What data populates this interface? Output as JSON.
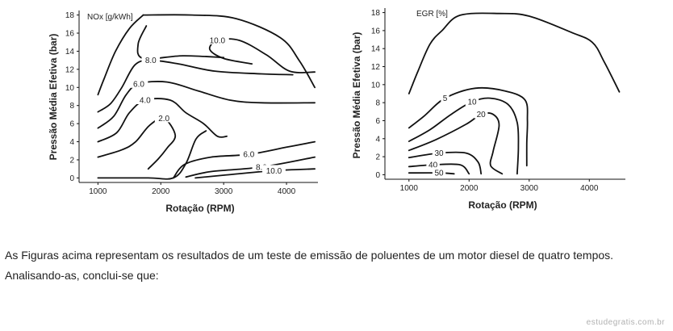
{
  "chart_data": [
    {
      "type": "contour",
      "title": "NOx [g/kWh]",
      "xlabel": "Rotação (RPM)",
      "ylabel": "Pressão Média Efetiva (bar)",
      "xlim": [
        700,
        4500
      ],
      "ylim": [
        -0.5,
        18.5
      ],
      "xticks": [
        1000,
        2000,
        3000,
        4000
      ],
      "yticks": [
        0,
        2,
        4,
        6,
        8,
        10,
        12,
        14,
        16,
        18
      ],
      "grid": false,
      "series": [
        {
          "label": "",
          "points": [
            [
              1000,
              9.2
            ],
            [
              1100,
              11
            ],
            [
              1280,
              14
            ],
            [
              1500,
              16.5
            ],
            [
              1720,
              18
            ]
          ]
        },
        {
          "label": "",
          "points": [
            [
              1720,
              18
            ],
            [
              2500,
              18
            ],
            [
              3200,
              17.6
            ],
            [
              3900,
              15.5
            ],
            [
              4200,
              13
            ],
            [
              4450,
              10
            ]
          ]
        },
        {
          "label": "10.0",
          "points": [
            [
              3450,
              12.6
            ],
            [
              3000,
              13.2
            ],
            [
              2780,
              14.2
            ],
            [
              2900,
              15.2
            ],
            [
              3250,
              15.2
            ],
            [
              3680,
              13.6
            ],
            [
              4050,
              11.8
            ],
            [
              4450,
              11.7
            ]
          ]
        },
        {
          "label": "8.0",
          "points": [
            [
              1000,
              7.3
            ],
            [
              1200,
              8.2
            ],
            [
              1380,
              10
            ],
            [
              1590,
              12.5
            ],
            [
              1840,
              13
            ],
            [
              2280,
              12.6
            ],
            [
              2860,
              11.8
            ],
            [
              3600,
              11.5
            ],
            [
              4100,
              11.4
            ]
          ]
        },
        {
          "label": "",
          "points": [
            [
              1770,
              16.8
            ],
            [
              1640,
              14.8
            ],
            [
              1720,
              13.2
            ],
            [
              2350,
              13.5
            ],
            [
              3000,
              13.3
            ]
          ]
        },
        {
          "label": "6.0",
          "points": [
            [
              1000,
              5.5
            ],
            [
              1250,
              6.8
            ],
            [
              1450,
              9.2
            ],
            [
              1650,
              10.4
            ],
            [
              2100,
              10.6
            ],
            [
              2600,
              9.6
            ],
            [
              3100,
              8.6
            ],
            [
              3600,
              8.3
            ],
            [
              4450,
              8.3
            ]
          ]
        },
        {
          "label": "4.0",
          "points": [
            [
              1000,
              4.0
            ],
            [
              1300,
              5.0
            ],
            [
              1500,
              7.2
            ],
            [
              1750,
              8.6
            ],
            [
              2150,
              8.6
            ],
            [
              2400,
              7.2
            ],
            [
              2680,
              6.0
            ],
            [
              2900,
              4.6
            ],
            [
              3050,
              4.6
            ]
          ]
        },
        {
          "label": "2.0",
          "points": [
            [
              1000,
              2.3
            ],
            [
              1380,
              3.1
            ],
            [
              1600,
              4.0
            ],
            [
              1820,
              5.8
            ],
            [
              2050,
              6.6
            ],
            [
              2230,
              4.7
            ],
            [
              2100,
              3.3
            ],
            [
              1960,
              2.1
            ],
            [
              1800,
              1.0
            ]
          ]
        },
        {
          "label": "",
          "points": [
            [
              1000,
              0
            ],
            [
              1800,
              0
            ],
            [
              2200,
              0
            ],
            [
              2400,
              1.6
            ],
            [
              2560,
              4.3
            ],
            [
              2720,
              5.2
            ]
          ]
        },
        {
          "label": "6.0",
          "points": [
            [
              2200,
              0
            ],
            [
              2380,
              1.5
            ],
            [
              2800,
              2.3
            ],
            [
              3400,
              2.6
            ],
            [
              4000,
              3.4
            ],
            [
              4450,
              4.0
            ]
          ]
        },
        {
          "label": "8.0",
          "points": [
            [
              2400,
              0.1
            ],
            [
              2800,
              0.7
            ],
            [
              3600,
              1.2
            ],
            [
              4450,
              2.3
            ]
          ]
        },
        {
          "label": "10.0",
          "points": [
            [
              2550,
              0
            ],
            [
              3000,
              0.3
            ],
            [
              3800,
              0.8
            ],
            [
              4450,
              1.0
            ]
          ]
        }
      ]
    },
    {
      "type": "contour",
      "title": "EGR [%]",
      "xlabel": "Rotação (RPM)",
      "ylabel": "Pressão Média Efetiva (bar)",
      "xlim": [
        600,
        4600
      ],
      "ylim": [
        -0.5,
        18.5
      ],
      "xticks": [
        1000,
        2000,
        3000,
        4000
      ],
      "yticks": [
        0,
        2,
        4,
        6,
        8,
        10,
        12,
        14,
        16,
        18
      ],
      "grid": false,
      "series": [
        {
          "label": "",
          "points": [
            [
              1000,
              9
            ],
            [
              1150,
              11.5
            ],
            [
              1350,
              14.5
            ],
            [
              1550,
              16
            ],
            [
              1850,
              17.7
            ],
            [
              2500,
              17.9
            ],
            [
              3000,
              17.6
            ],
            [
              3700,
              15.8
            ],
            [
              4050,
              14.7
            ],
            [
              4250,
              12.5
            ],
            [
              4500,
              9.2
            ]
          ]
        },
        {
          "label": "5",
          "points": [
            [
              1000,
              5.2
            ],
            [
              1250,
              6.5
            ],
            [
              1600,
              8.5
            ],
            [
              2100,
              9.6
            ],
            [
              2600,
              9.3
            ],
            [
              2930,
              8.3
            ],
            [
              2970,
              6.0
            ],
            [
              2960,
              3.5
            ],
            [
              2960,
              1.0
            ]
          ]
        },
        {
          "label": "10",
          "points": [
            [
              1000,
              3.7
            ],
            [
              1350,
              5.0
            ],
            [
              1700,
              6.7
            ],
            [
              2050,
              8.1
            ],
            [
              2350,
              8.5
            ],
            [
              2650,
              7.8
            ],
            [
              2800,
              5.8
            ],
            [
              2820,
              3.0
            ],
            [
              2800,
              0.1
            ]
          ]
        },
        {
          "label": "20",
          "points": [
            [
              1000,
              2.7
            ],
            [
              1450,
              3.9
            ],
            [
              1950,
              5.6
            ],
            [
              2200,
              6.7
            ],
            [
              2400,
              6.7
            ],
            [
              2500,
              5.5
            ],
            [
              2400,
              2.6
            ],
            [
              2360,
              1.0
            ],
            [
              2550,
              0.1
            ]
          ]
        },
        {
          "label": "30",
          "points": [
            [
              1000,
              1.9
            ],
            [
              1500,
              2.4
            ],
            [
              1950,
              2.4
            ],
            [
              2150,
              1.4
            ],
            [
              2200,
              0.1
            ]
          ]
        },
        {
          "label": "40",
          "points": [
            [
              1000,
              0.9
            ],
            [
              1400,
              1.1
            ],
            [
              1850,
              1.1
            ],
            [
              2000,
              0.1
            ]
          ]
        },
        {
          "label": "50",
          "points": [
            [
              1000,
              0.2
            ],
            [
              1500,
              0.2
            ],
            [
              1750,
              0.1
            ]
          ]
        }
      ]
    }
  ],
  "question": {
    "line1": "As Figuras acima representam os resultados de um teste de emissão de poluentes de um motor diesel de quatro tempos.",
    "line2": "Analisando-as, conclui-se que:"
  },
  "watermark": "estudegratis.com.br"
}
